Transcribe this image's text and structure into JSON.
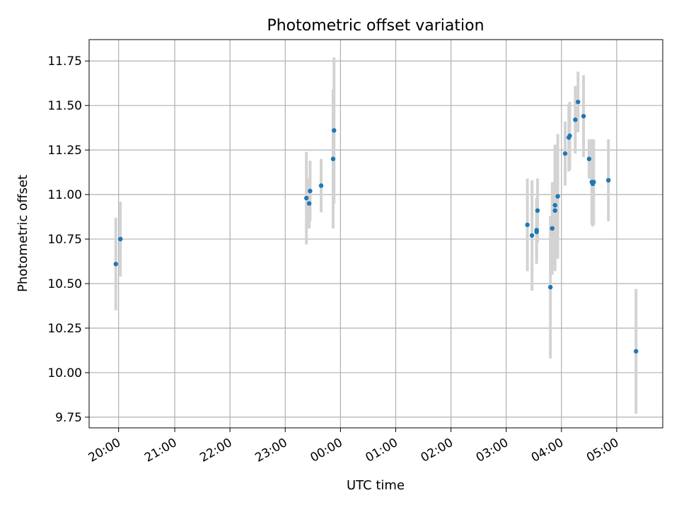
{
  "chart_data": {
    "type": "scatter",
    "title": "Photometric offset variation",
    "xlabel": "UTC time",
    "ylabel": "Photometric offset",
    "x_tick_labels": [
      "20:00",
      "21:00",
      "22:00",
      "23:00",
      "00:00",
      "01:00",
      "02:00",
      "03:00",
      "04:00",
      "05:00"
    ],
    "y_tick_labels": [
      "9.75",
      "10.00",
      "10.25",
      "10.50",
      "10.75",
      "11.00",
      "11.25",
      "11.50",
      "11.75"
    ],
    "x_tick_values": [
      "19:59",
      "21:00",
      "22:00",
      "23:00",
      "00:00",
      "01:00",
      "02:00",
      "03:00",
      "04:00",
      "05:00"
    ],
    "y_tick_values": [
      9.75,
      10.0,
      10.25,
      10.5,
      10.75,
      11.0,
      11.25,
      11.5,
      11.75
    ],
    "xlim": [
      "19:27",
      "05:50"
    ],
    "ylim": [
      9.69,
      11.87
    ],
    "grid": true,
    "colors": {
      "point": "#1f77b4",
      "error_bar": "#d3d3d3",
      "grid": "#b0b0b0",
      "axes": "#000000"
    },
    "points": [
      {
        "time": "19:56",
        "y": 10.61,
        "err": 0.26
      },
      {
        "time": "20:01",
        "y": 10.75,
        "err": 0.21
      },
      {
        "time": "23:23",
        "y": 10.98,
        "err": 0.26
      },
      {
        "time": "23:26",
        "y": 10.95,
        "err": 0.14
      },
      {
        "time": "23:27",
        "y": 11.02,
        "err": 0.17
      },
      {
        "time": "23:39",
        "y": 11.05,
        "err": 0.15
      },
      {
        "time": "23:52",
        "y": 11.2,
        "err": 0.39
      },
      {
        "time": "23:53",
        "y": 11.36,
        "err": 0.41
      },
      {
        "time": "03:23",
        "y": 10.83,
        "err": 0.26
      },
      {
        "time": "03:28",
        "y": 10.77,
        "err": 0.31
      },
      {
        "time": "03:33",
        "y": 10.8,
        "err": 0.18
      },
      {
        "time": "03:33",
        "y": 10.79,
        "err": 0.18
      },
      {
        "time": "03:34",
        "y": 10.91,
        "err": 0.18
      },
      {
        "time": "03:48",
        "y": 10.48,
        "err": 0.4
      },
      {
        "time": "03:50",
        "y": 10.81,
        "err": 0.26
      },
      {
        "time": "03:53",
        "y": 10.91,
        "err": 0.34
      },
      {
        "time": "03:53",
        "y": 10.94,
        "err": 0.34
      },
      {
        "time": "03:56",
        "y": 10.99,
        "err": 0.35
      },
      {
        "time": "04:04",
        "y": 11.23,
        "err": 0.18
      },
      {
        "time": "04:08",
        "y": 11.32,
        "err": 0.19
      },
      {
        "time": "04:09",
        "y": 11.33,
        "err": 0.19
      },
      {
        "time": "04:15",
        "y": 11.42,
        "err": 0.19
      },
      {
        "time": "04:18",
        "y": 11.52,
        "err": 0.17
      },
      {
        "time": "04:24",
        "y": 11.44,
        "err": 0.23
      },
      {
        "time": "04:30",
        "y": 11.2,
        "err": 0.11
      },
      {
        "time": "04:33",
        "y": 11.07,
        "err": 0.24
      },
      {
        "time": "04:34",
        "y": 11.06,
        "err": 0.24
      },
      {
        "time": "04:35",
        "y": 11.07,
        "err": 0.24
      },
      {
        "time": "04:51",
        "y": 11.08,
        "err": 0.23
      },
      {
        "time": "05:21",
        "y": 10.12,
        "err": 0.35
      }
    ]
  }
}
